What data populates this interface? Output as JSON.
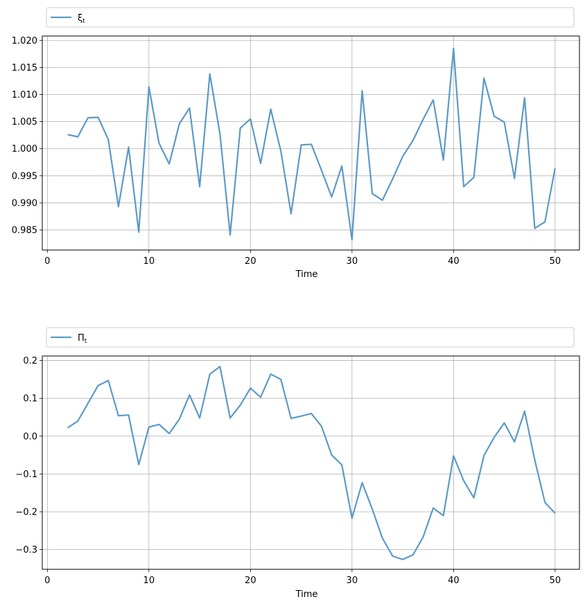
{
  "chart_data": [
    {
      "type": "line",
      "xlabel": "Time",
      "xlim": [
        -0.5,
        52.4
      ],
      "ylim": [
        0.9813,
        1.0208
      ],
      "xticks": [
        0,
        10,
        20,
        30,
        40,
        50
      ],
      "xtick_labels": [
        "0",
        "10",
        "20",
        "30",
        "40",
        "50"
      ],
      "yticks": [
        0.985,
        0.99,
        0.995,
        1.0,
        1.005,
        1.01,
        1.015,
        1.02
      ],
      "ytick_labels": [
        "0.985",
        "0.990",
        "0.995",
        "1.000",
        "1.005",
        "1.010",
        "1.015",
        "1.020"
      ],
      "grid": true,
      "legend_placement": "above",
      "color": "#5b9ac7",
      "series": [
        {
          "legend_base": "ξ",
          "legend_sub": "t",
          "x": [
            2,
            3,
            4,
            5,
            6,
            7,
            8,
            9,
            10,
            11,
            12,
            13,
            14,
            15,
            16,
            17,
            18,
            19,
            20,
            21,
            22,
            23,
            24,
            25,
            26,
            27,
            28,
            29,
            30,
            31,
            32,
            33,
            34,
            35,
            36,
            37,
            38,
            39,
            40,
            41,
            42,
            43,
            44,
            45,
            46,
            47,
            48,
            49,
            50
          ],
          "values": [
            1.0026,
            1.0022,
            1.0057,
            1.0058,
            1.0017,
            0.9893,
            1.0003,
            0.9846,
            1.0114,
            1.001,
            0.9972,
            1.0046,
            1.0075,
            0.993,
            1.0138,
            1.0027,
            0.9841,
            1.0038,
            1.0055,
            0.9973,
            1.0073,
            0.9995,
            0.988,
            1.0007,
            1.0008,
            0.996,
            0.9911,
            0.9968,
            0.9832,
            1.0107,
            0.9917,
            0.9905,
            0.9944,
            0.9986,
            1.0015,
            1.0054,
            1.009,
            0.9979,
            1.0185,
            0.993,
            0.9947,
            1.013,
            1.006,
            1.0049,
            0.9945,
            1.0094,
            0.9853,
            0.9865,
            0.9964
          ]
        }
      ]
    },
    {
      "type": "line",
      "xlabel": "Time",
      "xlim": [
        -0.5,
        52.4
      ],
      "ylim": [
        -0.352,
        0.212
      ],
      "xticks": [
        0,
        10,
        20,
        30,
        40,
        50
      ],
      "xtick_labels": [
        "0",
        "10",
        "20",
        "30",
        "40",
        "50"
      ],
      "yticks": [
        -0.3,
        -0.2,
        -0.1,
        0.0,
        0.1,
        0.2
      ],
      "ytick_labels": [
        "−0.3",
        "−0.2",
        "−0.1",
        "0.0",
        "0.1",
        "0.2"
      ],
      "grid": true,
      "legend_placement": "above",
      "color": "#5b9ac7",
      "series": [
        {
          "legend_base": "Π",
          "legend_sub": "t",
          "x": [
            2,
            3,
            4,
            5,
            6,
            7,
            8,
            9,
            10,
            11,
            12,
            13,
            14,
            15,
            16,
            17,
            18,
            19,
            20,
            21,
            22,
            23,
            24,
            25,
            26,
            27,
            28,
            29,
            30,
            31,
            32,
            33,
            34,
            35,
            36,
            37,
            38,
            39,
            40,
            41,
            42,
            43,
            44,
            45,
            46,
            47,
            48,
            49,
            50
          ],
          "values": [
            0.022,
            0.04,
            0.087,
            0.134,
            0.147,
            0.054,
            0.056,
            -0.075,
            0.024,
            0.031,
            0.007,
            0.045,
            0.109,
            0.048,
            0.164,
            0.184,
            0.048,
            0.082,
            0.127,
            0.103,
            0.164,
            0.15,
            0.047,
            0.053,
            0.06,
            0.026,
            -0.05,
            -0.076,
            -0.217,
            -0.123,
            -0.193,
            -0.27,
            -0.317,
            -0.326,
            -0.314,
            -0.267,
            -0.19,
            -0.21,
            -0.052,
            -0.118,
            -0.163,
            -0.051,
            -0.003,
            0.035,
            -0.015,
            0.066,
            -0.063,
            -0.175,
            -0.204
          ]
        }
      ]
    }
  ]
}
